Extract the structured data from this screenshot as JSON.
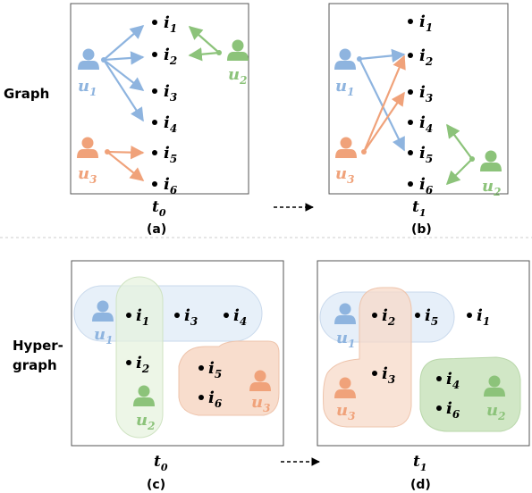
{
  "row_labels": {
    "graph": "Graph",
    "hyper_1": "Hyper-",
    "hyper_2": "graph"
  },
  "captions": {
    "a": "(a)",
    "b": "(b)",
    "c": "(c)",
    "d": "(d)"
  },
  "time_labels": {
    "a": {
      "t": "t",
      "sub": "0"
    },
    "b": {
      "t": "t",
      "sub": "1"
    },
    "c": {
      "t": "t",
      "sub": "0"
    },
    "d": {
      "t": "t",
      "sub": "1"
    }
  },
  "users": {
    "u1": {
      "name": "u",
      "sub": "1",
      "color": "#8EB4DF"
    },
    "u2": {
      "name": "u",
      "sub": "2",
      "color": "#8CC37A"
    },
    "u3": {
      "name": "u",
      "sub": "3",
      "color": "#F0A27A"
    }
  },
  "items": {
    "i1": {
      "name": "i",
      "sub": "1"
    },
    "i2": {
      "name": "i",
      "sub": "2"
    },
    "i3": {
      "name": "i",
      "sub": "3"
    },
    "i4": {
      "name": "i",
      "sub": "4"
    },
    "i5": {
      "name": "i",
      "sub": "5"
    },
    "i6": {
      "name": "i",
      "sub": "6"
    }
  },
  "colors": {
    "user1": "#8EB4DF",
    "user2": "#8CC37A",
    "user3": "#F0A27A",
    "hyper1_fill": "#E3EDF8",
    "hyper2_fill": "#E6F2DD",
    "hyper3_fill": "#F7D9C8",
    "hyper2_dark_fill": "#CFE6C3",
    "frame": "#555555"
  }
}
